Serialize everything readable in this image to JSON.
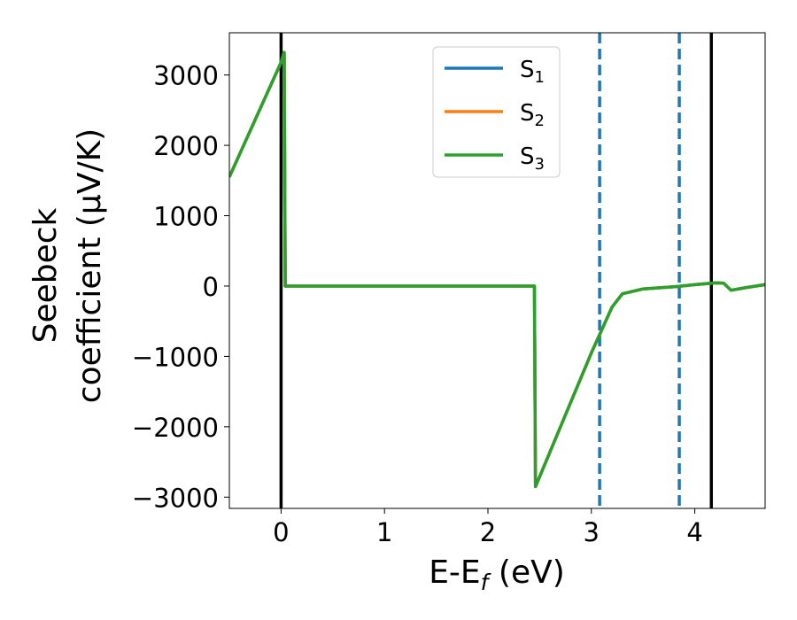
{
  "chart_data": {
    "type": "line",
    "title": "",
    "xlabel": {
      "base": "E-E",
      "sub": "f",
      "suffix": " (eV)"
    },
    "ylabel": {
      "line1": "Seebeck",
      "line2": "coefficient  (μV/K)"
    },
    "xlim": [
      -0.5,
      4.68
    ],
    "ylim": [
      -3160,
      3600
    ],
    "xticks": [
      0,
      1,
      2,
      3,
      4
    ],
    "xtick_labels": [
      "0",
      "1",
      "2",
      "3",
      "4"
    ],
    "yticks": [
      3000,
      2000,
      1000,
      0,
      -1000,
      -2000,
      -3000
    ],
    "ytick_labels": [
      "3000",
      "2000",
      "1000",
      "0",
      "−1000",
      "−2000",
      "−3000"
    ],
    "grid": false,
    "legend_position": "top-center",
    "series": [
      {
        "name": "S",
        "sub": "1",
        "color": "#1f77b4",
        "x": [
          -0.5,
          0.0,
          0.03,
          0.04,
          2.45,
          2.46,
          3.0,
          3.2,
          3.3,
          3.5,
          3.8,
          4.0,
          4.2,
          4.28,
          4.35,
          4.5,
          4.68
        ],
        "y": [
          1550,
          3180,
          3320,
          0,
          0,
          -2850,
          -950,
          -300,
          -110,
          -40,
          -10,
          20,
          45,
          40,
          -60,
          -20,
          20
        ]
      },
      {
        "name": "S",
        "sub": "2",
        "color": "#ff7f0e",
        "x": [
          -0.5,
          0.0,
          0.03,
          0.04,
          2.45,
          2.46,
          3.0,
          3.2,
          3.3,
          3.5,
          3.8,
          4.0,
          4.2,
          4.28,
          4.35,
          4.5,
          4.68
        ],
        "y": [
          1550,
          3180,
          3320,
          0,
          0,
          -2850,
          -950,
          -300,
          -110,
          -40,
          -10,
          20,
          45,
          40,
          -60,
          -20,
          20
        ]
      },
      {
        "name": "S",
        "sub": "3",
        "color": "#2ca02c",
        "x": [
          -0.5,
          0.0,
          0.03,
          0.04,
          2.45,
          2.46,
          3.0,
          3.2,
          3.3,
          3.5,
          3.8,
          4.0,
          4.2,
          4.28,
          4.35,
          4.5,
          4.68
        ],
        "y": [
          1550,
          3180,
          3320,
          0,
          0,
          -2850,
          -950,
          -300,
          -110,
          -40,
          -10,
          20,
          45,
          40,
          -60,
          -20,
          20
        ]
      }
    ],
    "vertical_lines": [
      {
        "x": 0.0,
        "style": "solid",
        "color": "#000000"
      },
      {
        "x": 4.16,
        "style": "solid",
        "color": "#000000"
      },
      {
        "x": 3.08,
        "style": "dashed",
        "color": "#1f77b4"
      },
      {
        "x": 3.85,
        "style": "dashed",
        "color": "#1f77b4"
      }
    ]
  }
}
